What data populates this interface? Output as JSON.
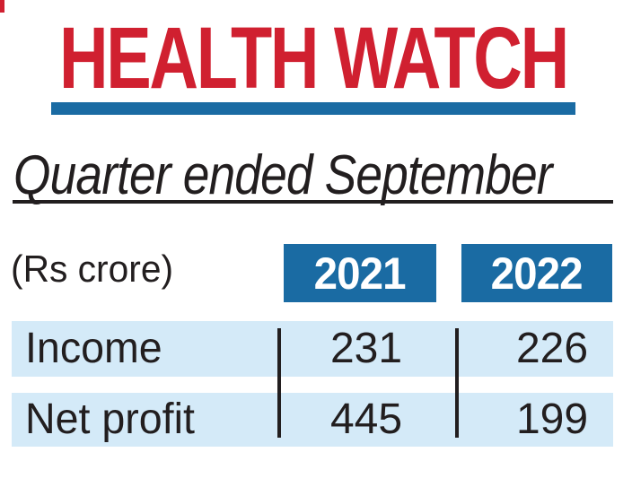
{
  "labels": {
    "unit_label": "(Rs crore)"
  },
  "colors": {
    "accent_red": "#d02030",
    "accent_blue": "#1a6ba3",
    "row_background": "#d4eaf8",
    "text": "#221e1f"
  },
  "chart_data": {
    "type": "table",
    "title": "HEALTH WATCH",
    "subtitle": "Quarter ended September",
    "unit": "Rs crore",
    "columns": [
      "2021",
      "2022"
    ],
    "rows": [
      {
        "label": "Income",
        "values": [
          231,
          226
        ]
      },
      {
        "label": "Net profit",
        "values": [
          445,
          199
        ]
      }
    ]
  }
}
